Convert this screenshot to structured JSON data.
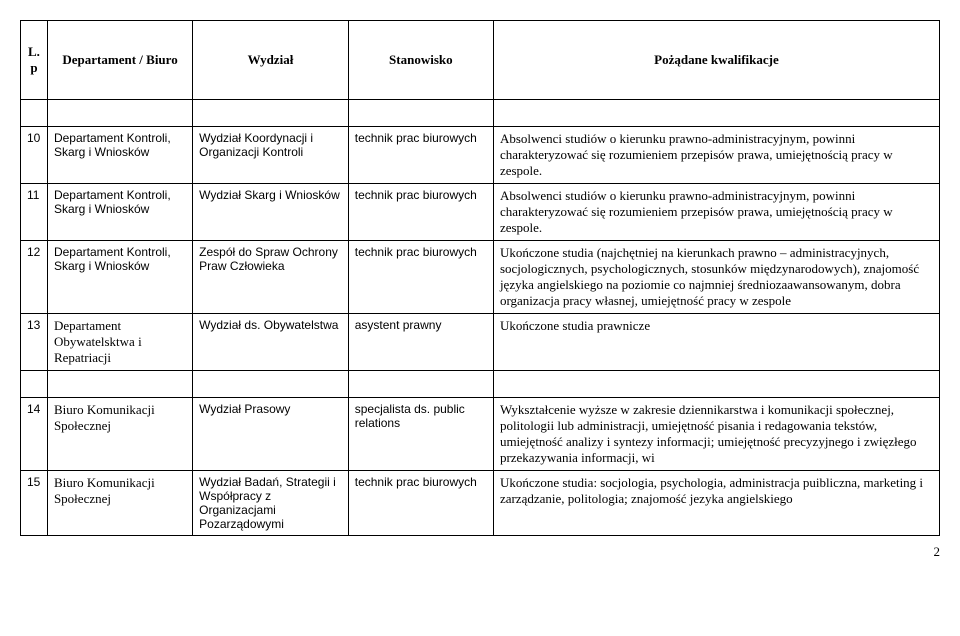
{
  "header": {
    "lp": "L.p",
    "dept": "Departament / Biuro",
    "wydz": "Wydział",
    "stan": "Stanowisko",
    "kwal": "Pożądane kwalifikacje"
  },
  "rows": [
    {
      "lp": "10",
      "dept": "Departament Kontroli, Skarg i Wniosków",
      "wydz": "Wydział Koordynacji i Organizacji Kontroli",
      "stan": "technik prac biurowych",
      "kwal": "Absolwenci studiów o kierunku prawno-administracyjnym, powinni charakteryzować się rozumieniem przepisów prawa, umiejętnością pracy w zespole."
    },
    {
      "lp": "11",
      "dept": "Departament Kontroli, Skarg i Wniosków",
      "wydz": "Wydział Skarg i Wniosków",
      "stan": "technik prac biurowych",
      "kwal": "Absolwenci studiów o kierunku prawno-administracyjnym, powinni charakteryzować się rozumieniem przepisów prawa, umiejętnością pracy w zespole."
    },
    {
      "lp": "12",
      "dept": "Departament Kontroli, Skarg i Wniosków",
      "wydz": "Zespół do Spraw Ochrony Praw Człowieka",
      "stan": "technik prac biurowych",
      "kwal": "Ukończone studia (najchętniej na kierunkach prawno – administracyjnych, socjologicznych, psychologicznych, stosunków międzynarodowych), znajomość języka angielskiego na poziomie co najmniej średniozaawansowanym, dobra organizacja pracy własnej, umiejętność pracy w zespole"
    },
    {
      "lp": "13",
      "dept": "Departament Obywatelsktwa i Repatriacji",
      "wydz": "Wydział ds. Obywatelstwa",
      "stan": "asystent prawny",
      "kwal": "Ukończone studia prawnicze"
    },
    {
      "lp": "14",
      "dept": "Biuro Komunikacji Społecznej",
      "wydz": "Wydział Prasowy",
      "stan": "specjalista ds. public relations",
      "kwal": "Wykształcenie wyższe w zakresie dziennikarstwa i komunikacji społecznej, politologii lub administracji, umiejętność pisania i redagowania tekstów, umiejętność analizy  i syntezy informacji; umiejętność precyzyjnego i zwięzłego przekazywania informacji, wi"
    },
    {
      "lp": "15",
      "dept": "Biuro Komunikacji Społecznej",
      "wydz": "Wydział Badań, Strategii i Współpracy z Organizacjami Pozarządowymi",
      "stan": "technik prac biurowych",
      "kwal": "Ukończone studia: socjologia, psychologia, administracja puibliczna, marketing i zarządzanie, politologia; znajomość jezyka angielskiego"
    }
  ],
  "page_number": "2"
}
